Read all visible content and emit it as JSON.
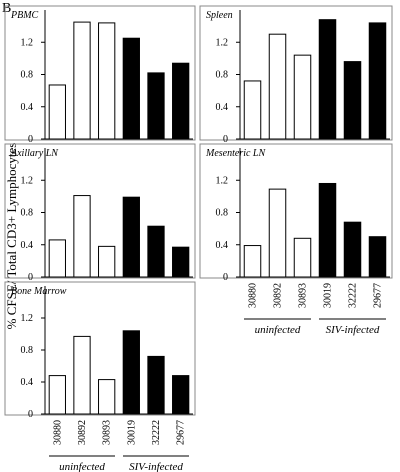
{
  "panel_label": "B",
  "y_label": "% CFSE/ Total CD3+ Lymphocytes",
  "chart_data": [
    {
      "type": "bar",
      "title": "PBMC",
      "categories": [
        null,
        null,
        null,
        null,
        null,
        null
      ],
      "values": [
        0.67,
        1.45,
        1.44,
        1.25,
        0.82,
        0.94
      ],
      "colors": [
        "#ffffff",
        "#ffffff",
        "#ffffff",
        "#000000",
        "#000000",
        "#000000"
      ],
      "ylim": [
        0,
        1.6
      ],
      "yticks": [
        0,
        0.4,
        0.8,
        1.2
      ]
    },
    {
      "type": "bar",
      "title": "Spleen",
      "categories": [
        null,
        null,
        null,
        null,
        null,
        null
      ],
      "values": [
        0.72,
        1.3,
        1.04,
        1.48,
        0.96,
        1.44
      ],
      "colors": [
        "#ffffff",
        "#ffffff",
        "#ffffff",
        "#000000",
        "#000000",
        "#000000"
      ],
      "ylim": [
        0,
        1.6
      ],
      "yticks": [
        0,
        0.4,
        0.8,
        1.2
      ]
    },
    {
      "type": "bar",
      "title": "Axillary LN",
      "categories": [
        null,
        null,
        null,
        null,
        null,
        null
      ],
      "values": [
        0.46,
        1.01,
        0.38,
        0.99,
        0.63,
        0.37
      ],
      "colors": [
        "#ffffff",
        "#ffffff",
        "#ffffff",
        "#000000",
        "#000000",
        "#000000"
      ],
      "ylim": [
        0,
        1.6
      ],
      "yticks": [
        0,
        0.4,
        0.8,
        1.2
      ]
    },
    {
      "type": "bar",
      "title": "Mesenteric LN",
      "categories": [
        "30880",
        "30892",
        "30893",
        "30019",
        "32222",
        "29677"
      ],
      "values": [
        0.39,
        1.09,
        0.48,
        1.16,
        0.68,
        0.5
      ],
      "colors": [
        "#ffffff",
        "#ffffff",
        "#ffffff",
        "#000000",
        "#000000",
        "#000000"
      ],
      "ylim": [
        0,
        1.6
      ],
      "yticks": [
        0,
        0.4,
        0.8,
        1.2
      ],
      "groups": [
        "uninfected",
        "SIV-infected"
      ]
    },
    {
      "type": "bar",
      "title": "Bone Marrow",
      "categories": [
        "30880",
        "30892",
        "30893",
        "30019",
        "32222",
        "29677"
      ],
      "values": [
        0.48,
        0.97,
        0.43,
        1.04,
        0.72,
        0.48
      ],
      "colors": [
        "#ffffff",
        "#ffffff",
        "#ffffff",
        "#000000",
        "#000000",
        "#000000"
      ],
      "ylim": [
        0,
        1.6
      ],
      "yticks": [
        0,
        0.4,
        0.8,
        1.2
      ],
      "groups": [
        "uninfected",
        "SIV-infected"
      ]
    }
  ]
}
